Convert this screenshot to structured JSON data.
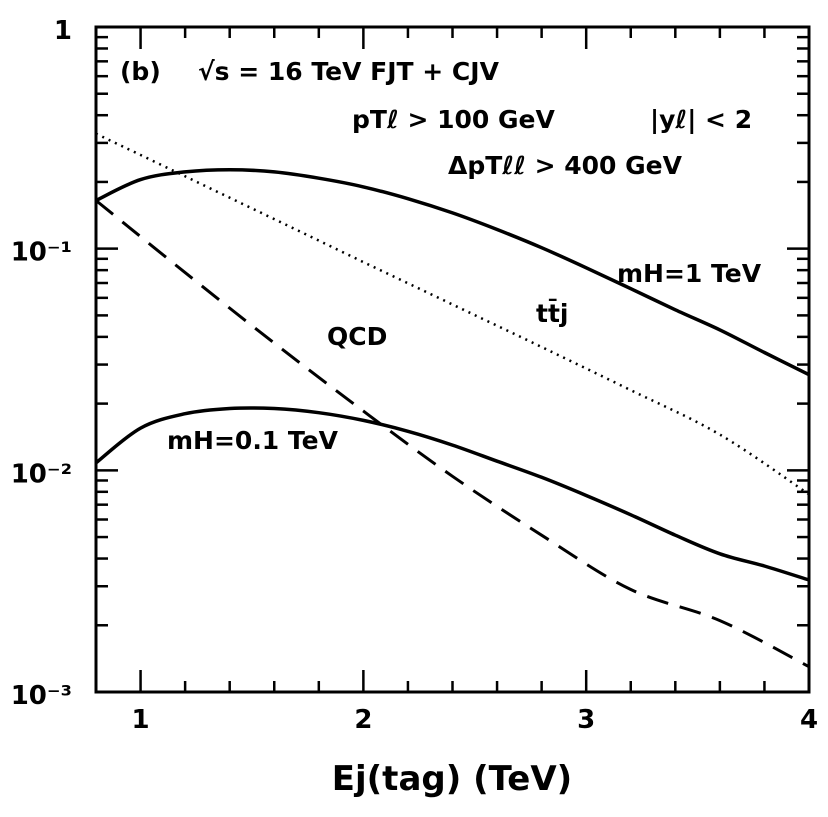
{
  "chart_data": {
    "type": "line",
    "panel_label": "(b)",
    "title": "√s = 16 TeV  FJT + CJV",
    "cuts": [
      "pTℓ > 100 GeV",
      "|yℓ| < 2",
      "ΔpTℓℓ > 400 GeV"
    ],
    "xlabel": "Ej(tag)   (TeV)",
    "ylabel": "",
    "x_ticks": [
      "1",
      "2",
      "3",
      "4"
    ],
    "y_ticks": [
      "10⁻³",
      "10⁻²",
      "10⁻¹",
      "1"
    ],
    "xlim": [
      0.8,
      4.0
    ],
    "ylim": [
      0.001,
      1
    ],
    "yscale": "log",
    "grid": false,
    "series": [
      {
        "name": "mH=1 TeV",
        "style": "solid",
        "x": [
          0.8,
          1.0,
          1.2,
          1.4,
          1.6,
          1.8,
          2.0,
          2.2,
          2.4,
          2.6,
          2.8,
          3.0,
          3.2,
          3.4,
          3.6,
          3.8,
          4.0
        ],
        "y": [
          0.165,
          0.205,
          0.222,
          0.227,
          0.222,
          0.208,
          0.19,
          0.168,
          0.145,
          0.122,
          0.101,
          0.082,
          0.066,
          0.053,
          0.043,
          0.034,
          0.027
        ]
      },
      {
        "name": "tt̄j",
        "style": "dotted",
        "x": [
          0.8,
          1.2,
          1.6,
          2.0,
          2.4,
          2.8,
          3.2,
          3.6,
          4.0
        ],
        "y": [
          0.33,
          0.212,
          0.136,
          0.087,
          0.056,
          0.036,
          0.023,
          0.0145,
          0.0078
        ]
      },
      {
        "name": "QCD",
        "style": "dashed",
        "x": [
          0.8,
          1.2,
          1.6,
          2.0,
          2.4,
          2.8,
          3.2,
          3.6,
          4.0
        ],
        "y": [
          0.165,
          0.078,
          0.0375,
          0.0185,
          0.0094,
          0.0051,
          0.0029,
          0.0021,
          0.0013
        ]
      },
      {
        "name": "mH=0.1 TeV",
        "style": "solid",
        "x": [
          0.8,
          1.0,
          1.2,
          1.4,
          1.6,
          1.8,
          2.0,
          2.2,
          2.4,
          2.6,
          2.8,
          3.0,
          3.2,
          3.4,
          3.6,
          3.8,
          4.0
        ],
        "y": [
          0.0108,
          0.0155,
          0.018,
          0.019,
          0.019,
          0.0182,
          0.0168,
          0.015,
          0.013,
          0.011,
          0.0093,
          0.0077,
          0.0063,
          0.0051,
          0.0042,
          0.0037,
          0.0032
        ]
      }
    ]
  }
}
